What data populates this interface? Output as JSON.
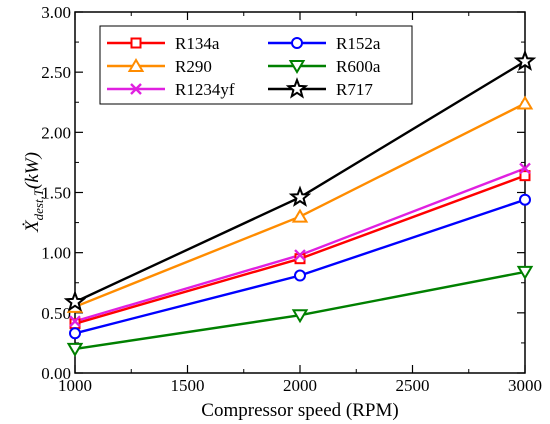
{
  "chart_data": {
    "type": "line",
    "xlabel": "Compressor speed (RPM)",
    "ylabel": "Ẋ",
    "ylabel_subscript": "dest,T",
    "ylabel_unit": "(kW)",
    "xlim": [
      1000,
      3000
    ],
    "ylim": [
      0.0,
      3.0
    ],
    "x_ticks": [
      "1000",
      "1500",
      "2000",
      "2500",
      "3000"
    ],
    "y_ticks": [
      "0.00",
      "0.50",
      "1.00",
      "1.50",
      "2.00",
      "2.50",
      "3.00"
    ],
    "x": [
      1000,
      2000,
      3000
    ],
    "grid": false,
    "legend_position": "top-left",
    "series": [
      {
        "name": "R134a",
        "values": [
          0.41,
          0.95,
          1.64
        ],
        "color": "#ff0000",
        "marker": "square"
      },
      {
        "name": "R152a",
        "values": [
          0.33,
          0.81,
          1.44
        ],
        "color": "#0000ff",
        "marker": "circle"
      },
      {
        "name": "R290",
        "values": [
          0.55,
          1.3,
          2.24
        ],
        "color": "#ff8c00",
        "marker": "triangle-up"
      },
      {
        "name": "R600a",
        "values": [
          0.2,
          0.48,
          0.84
        ],
        "color": "#008000",
        "marker": "triangle-down"
      },
      {
        "name": "R1234yf",
        "values": [
          0.43,
          0.98,
          1.7
        ],
        "color": "#e020e0",
        "marker": "x"
      },
      {
        "name": "R717",
        "values": [
          0.59,
          1.46,
          2.59
        ],
        "color": "#000000",
        "marker": "star"
      }
    ]
  }
}
